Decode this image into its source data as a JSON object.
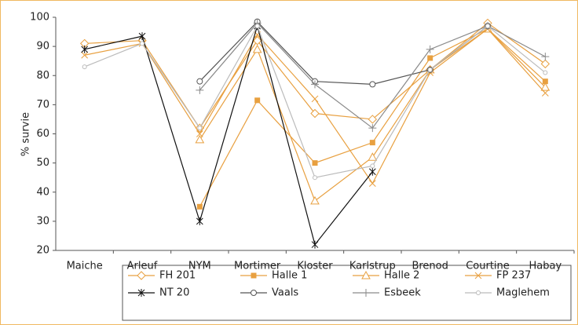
{
  "chart_data": {
    "type": "line",
    "y_label": "% survie",
    "categories": [
      "Maiche",
      "Arleuf",
      "NYM",
      "Mortimer",
      "Kloster",
      "Karlstrup",
      "Brenod",
      "Courtine",
      "Habay"
    ],
    "ylim": [
      20,
      100
    ],
    "yticks": [
      20,
      30,
      40,
      50,
      60,
      70,
      80,
      90,
      100
    ],
    "series": [
      {
        "name": "FH 201",
        "color": "#e8a040",
        "marker": "diamond",
        "values": [
          91,
          92,
          62,
          92,
          67,
          65,
          82,
          98,
          84
        ]
      },
      {
        "name": "Halle 1",
        "color": "#e8a040",
        "marker": "square",
        "values": [
          null,
          null,
          35,
          71.5,
          50,
          57,
          86,
          96,
          78
        ]
      },
      {
        "name": "Halle 2",
        "color": "#e8a040",
        "marker": "triangle",
        "values": [
          null,
          null,
          58,
          89,
          37,
          52,
          82,
          96,
          76
        ]
      },
      {
        "name": "FP 237",
        "color": "#e8a040",
        "marker": "x",
        "values": [
          87,
          91,
          60,
          94,
          72,
          43,
          81,
          96,
          74
        ]
      },
      {
        "name": "NT 20",
        "color": "#111111",
        "marker": "star",
        "values": [
          89,
          93.5,
          30,
          97,
          22,
          47,
          null,
          null,
          null
        ]
      },
      {
        "name": "Vaals",
        "color": "#555555",
        "marker": "circle",
        "values": [
          null,
          null,
          78,
          98.5,
          78,
          77,
          82,
          97,
          null
        ]
      },
      {
        "name": "Esbeek",
        "color": "#8a8a8a",
        "marker": "plus",
        "values": [
          null,
          null,
          75,
          98,
          77,
          62,
          89,
          97,
          86.5
        ]
      },
      {
        "name": "Maglehem",
        "color": "#bbbbbb",
        "marker": "smallcircle",
        "values": [
          83,
          91,
          62,
          97,
          45,
          49,
          82,
          97,
          81
        ]
      }
    ]
  }
}
